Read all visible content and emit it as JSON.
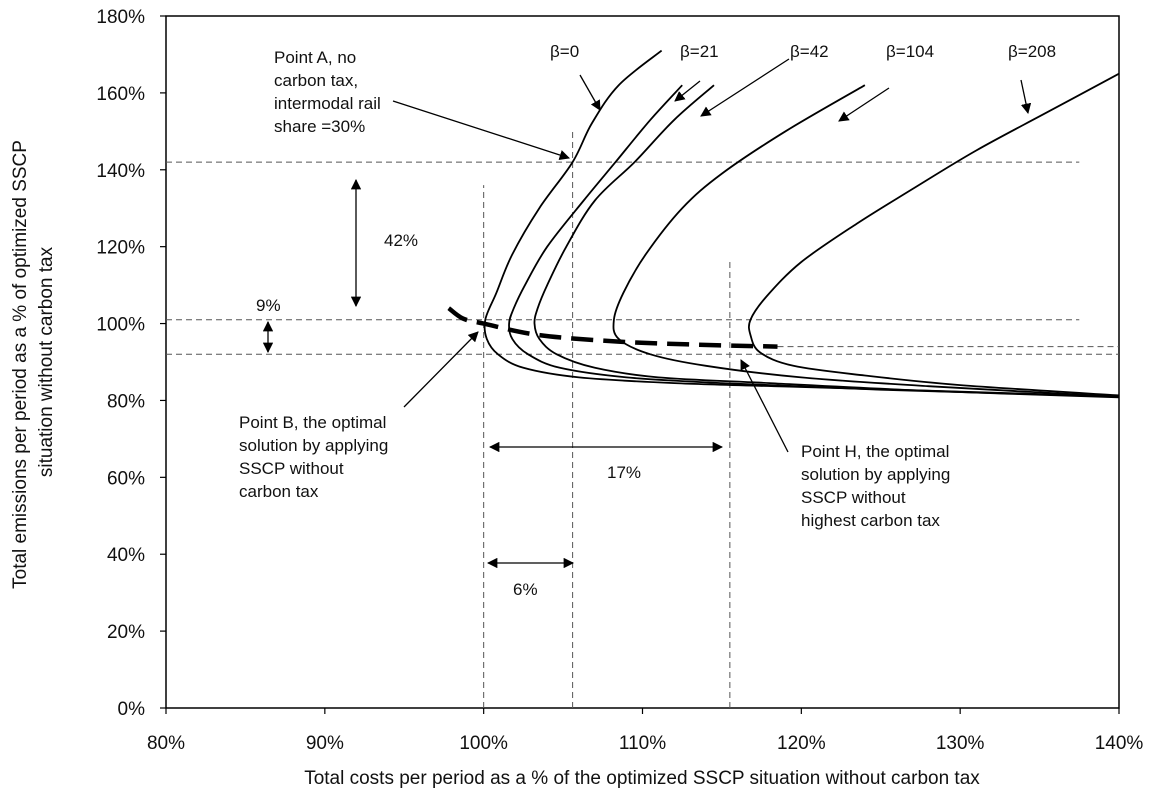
{
  "chart_data": {
    "type": "line",
    "xlabel": "Total costs per period as a % of the optimized SSCP situation without carbon tax",
    "ylabel_lines": [
      "Total emissions per period as a % of optimized SSCP",
      "situation without carbon tax"
    ],
    "xlim": [
      80,
      140
    ],
    "ylim": [
      0,
      180
    ],
    "x_ticks": [
      80,
      90,
      100,
      110,
      120,
      130,
      140
    ],
    "y_ticks": [
      0,
      20,
      40,
      60,
      80,
      100,
      120,
      140,
      160,
      180
    ],
    "x_tick_labels": [
      "80%",
      "90%",
      "100%",
      "110%",
      "120%",
      "130%",
      "140%"
    ],
    "y_tick_labels": [
      "0%",
      "20%",
      "40%",
      "60%",
      "80%",
      "100%",
      "120%",
      "140%",
      "160%",
      "180%"
    ],
    "grid": false,
    "series": [
      {
        "name": "β=0",
        "points": [
          [
            111.2,
            171
          ],
          [
            108.5,
            162
          ],
          [
            106.8,
            152
          ],
          [
            105.6,
            142
          ],
          [
            103.5,
            130
          ],
          [
            101.8,
            118
          ],
          [
            100.8,
            108
          ],
          [
            100.1,
            101
          ],
          [
            100.2,
            96
          ],
          [
            100.9,
            92
          ],
          [
            102.5,
            88.5
          ],
          [
            106,
            86
          ],
          [
            112,
            84.5
          ],
          [
            120,
            83.5
          ],
          [
            130,
            82.3
          ],
          [
            140,
            81
          ]
        ]
      },
      {
        "name": "β=21",
        "points": [
          [
            112.5,
            162
          ],
          [
            110.5,
            153
          ],
          [
            108.3,
            142
          ],
          [
            106.3,
            132
          ],
          [
            104,
            120
          ],
          [
            102.6,
            110
          ],
          [
            101.9,
            104
          ],
          [
            101.6,
            100
          ],
          [
            101.8,
            96
          ],
          [
            102.8,
            92
          ],
          [
            104.8,
            88.5
          ],
          [
            109,
            86
          ],
          [
            115,
            84.5
          ],
          [
            125,
            82.8
          ],
          [
            140,
            81
          ]
        ]
      },
      {
        "name": "β=42",
        "points": [
          [
            114.5,
            162
          ],
          [
            112,
            153
          ],
          [
            109.5,
            142
          ],
          [
            107,
            132
          ],
          [
            105.2,
            120
          ],
          [
            104,
            110
          ],
          [
            103.4,
            104
          ],
          [
            103.2,
            100
          ],
          [
            103.5,
            96
          ],
          [
            104.6,
            92
          ],
          [
            107,
            88.5
          ],
          [
            111,
            86
          ],
          [
            118,
            84.5
          ],
          [
            128,
            82.5
          ],
          [
            140,
            80.8
          ]
        ]
      },
      {
        "name": "β=104",
        "points": [
          [
            124,
            162
          ],
          [
            119,
            150
          ],
          [
            115,
            139
          ],
          [
            112.5,
            130
          ],
          [
            110.2,
            118
          ],
          [
            108.8,
            108
          ],
          [
            108.2,
            101
          ],
          [
            108.5,
            96
          ],
          [
            110.5,
            92
          ],
          [
            114,
            89
          ],
          [
            120,
            86
          ],
          [
            128,
            83.7
          ],
          [
            140,
            81
          ]
        ]
      },
      {
        "name": "β=208",
        "points": [
          [
            140,
            165
          ],
          [
            135.5,
            155
          ],
          [
            131,
            145
          ],
          [
            127,
            135
          ],
          [
            123.5,
            126
          ],
          [
            120,
            116
          ],
          [
            117.8,
            107
          ],
          [
            116.8,
            101
          ],
          [
            116.8,
            97
          ],
          [
            117.4,
            92.5
          ],
          [
            119.5,
            89
          ],
          [
            124,
            86.5
          ],
          [
            130,
            84
          ],
          [
            140,
            81.3
          ]
        ]
      }
    ],
    "optimal_frontier": {
      "style": "thick-dashed",
      "points": [
        [
          97.8,
          104
        ],
        [
          98.7,
          101.3
        ],
        [
          100,
          100
        ],
        [
          103.5,
          97
        ],
        [
          108.5,
          95.3
        ],
        [
          113.5,
          94.5
        ],
        [
          118.5,
          94
        ]
      ]
    },
    "reference_lines": {
      "horizontal": [
        {
          "y": 142,
          "x_from": 80,
          "x_to": 137.5
        },
        {
          "y": 101,
          "x_from": 80,
          "x_to": 137.5
        },
        {
          "y": 92,
          "x_from": 80,
          "x_to": 140
        },
        {
          "y": 94,
          "x_from": 118.5,
          "x_to": 140
        }
      ],
      "vertical": [
        {
          "x": 100,
          "y_from": 0,
          "y_to": 136
        },
        {
          "x": 105.6,
          "y_from": 0,
          "y_to": 150
        },
        {
          "x": 115.5,
          "y_from": 0,
          "y_to": 116
        }
      ]
    },
    "annotations": [
      {
        "id": "a42",
        "text": "42%"
      },
      {
        "id": "a9",
        "text": "9%"
      },
      {
        "id": "a17",
        "text": "17%"
      },
      {
        "id": "a6",
        "text": "6%"
      },
      {
        "id": "pointA",
        "lines": [
          "Point A, no",
          "carbon tax,",
          "intermodal rail",
          "share =30%"
        ]
      },
      {
        "id": "pointB",
        "lines": [
          "Point B, the optimal",
          "solution by applying",
          "SSCP without",
          "carbon tax"
        ]
      },
      {
        "id": "pointH",
        "lines": [
          "Point H, the optimal",
          "solution by applying",
          "SSCP without",
          "highest carbon tax"
        ]
      }
    ]
  }
}
